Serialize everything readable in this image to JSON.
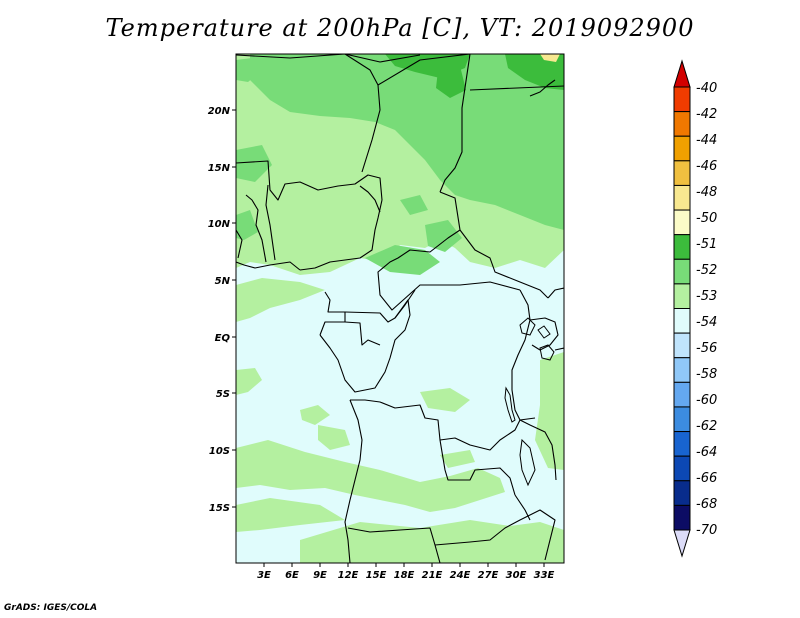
{
  "title": "Temperature at 200hPa [C], VT: 2019092900",
  "credit": "GrADS: IGES/COLA",
  "lon_labels": [
    "3E",
    "6E",
    "9E",
    "12E",
    "15E",
    "18E",
    "21E",
    "24E",
    "27E",
    "30E",
    "33E"
  ],
  "lat_labels": [
    "20N",
    "15N",
    "10N",
    "5N",
    "EQ",
    "5S",
    "10S",
    "15S"
  ],
  "colorbar": {
    "labels": [
      "-40",
      "-42",
      "-44",
      "-46",
      "-48",
      "-50",
      "-51",
      "-52",
      "-53",
      "-54",
      "-56",
      "-58",
      "-60",
      "-62",
      "-64",
      "-66",
      "-68",
      "-70"
    ],
    "colors": [
      "#d20000",
      "#f03c00",
      "#f07800",
      "#f0a000",
      "#f0c040",
      "#f8e890",
      "#fcfcc8",
      "#3cbc3c",
      "#78dc78",
      "#b4f0a0",
      "#e0fcfc",
      "#c0e4fc",
      "#90c8f8",
      "#64a8f0",
      "#3c8ce0",
      "#1864d0",
      "#0c48b4",
      "#082c8c",
      "#0c0c64",
      "#dcdcf8"
    ]
  },
  "map_colors": {
    "t_minus_54": "#e0fcfc",
    "t_minus_53": "#b4f0a0",
    "t_minus_52": "#78dc78",
    "t_minus_51": "#3cbc3c",
    "t_minus_50": "#f8e890"
  }
}
